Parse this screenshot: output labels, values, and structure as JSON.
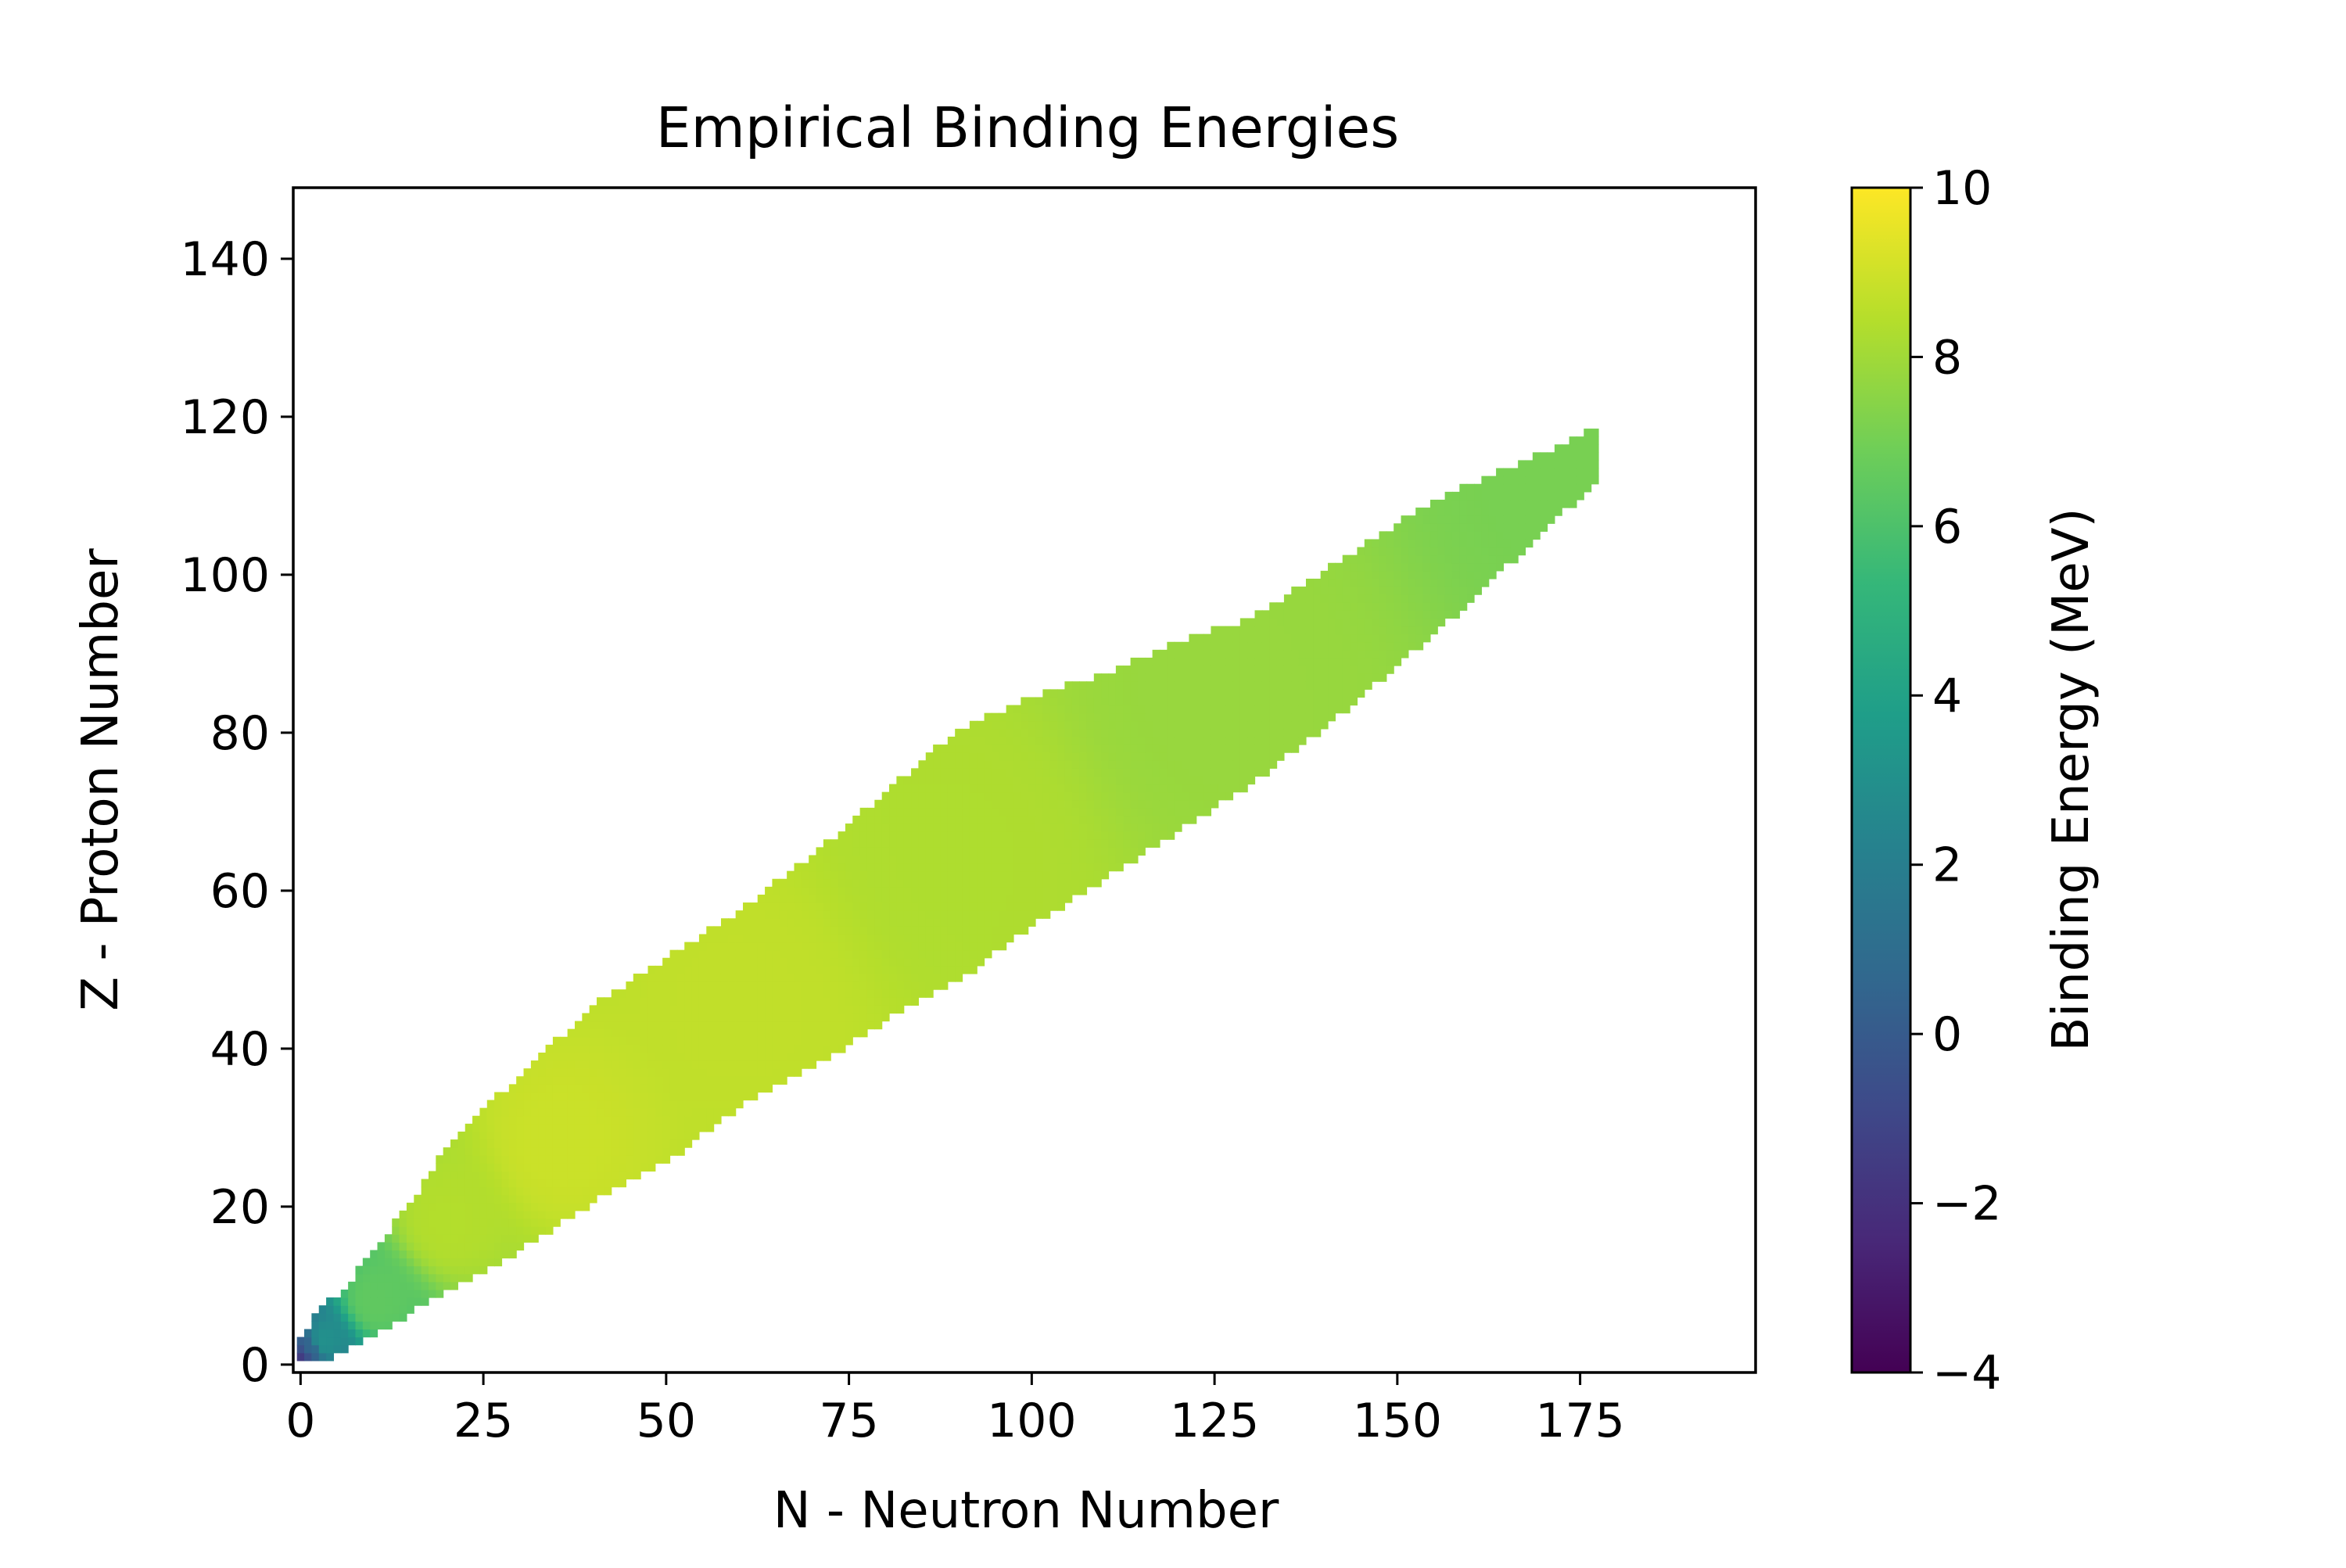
{
  "chart_data": {
    "type": "heatmap",
    "title": "Empirical Binding Energies",
    "xlabel": "N - Neutron Number",
    "ylabel": "Z - Proton Number",
    "xlim": [
      -1,
      199
    ],
    "ylim": [
      -1,
      149
    ],
    "x_ticks": [
      0,
      25,
      50,
      75,
      100,
      125,
      150,
      175
    ],
    "y_ticks": [
      0,
      20,
      40,
      60,
      80,
      100,
      120,
      140
    ],
    "grid": false,
    "colormap": "viridis",
    "colorbar": {
      "label": "Binding Energy (MeV)",
      "range": [
        -4,
        10
      ],
      "ticks": [
        -4,
        -2,
        0,
        2,
        4,
        6,
        8,
        10
      ],
      "tick_labels": [
        "−4",
        "−2",
        "0",
        "2",
        "4",
        "6",
        "8",
        "10"
      ]
    },
    "band_edges": [
      {
        "N": 0,
        "Z_lower": 1,
        "Z_upper": 3
      },
      {
        "N": 3,
        "Z_lower": 1,
        "Z_upper": 7
      },
      {
        "N": 6,
        "Z_lower": 2,
        "Z_upper": 9
      },
      {
        "N": 10,
        "Z_lower": 4,
        "Z_upper": 14
      },
      {
        "N": 15,
        "Z_lower": 7,
        "Z_upper": 20
      },
      {
        "N": 20,
        "Z_lower": 10,
        "Z_upper": 27
      },
      {
        "N": 25,
        "Z_lower": 12,
        "Z_upper": 32
      },
      {
        "N": 30,
        "Z_lower": 15,
        "Z_upper": 36
      },
      {
        "N": 40,
        "Z_lower": 21,
        "Z_upper": 45
      },
      {
        "N": 50,
        "Z_lower": 26,
        "Z_upper": 51
      },
      {
        "N": 60,
        "Z_lower": 33,
        "Z_upper": 57
      },
      {
        "N": 70,
        "Z_lower": 38,
        "Z_upper": 64
      },
      {
        "N": 80,
        "Z_lower": 44,
        "Z_upper": 72
      },
      {
        "N": 90,
        "Z_lower": 49,
        "Z_upper": 80
      },
      {
        "N": 100,
        "Z_lower": 56,
        "Z_upper": 84
      },
      {
        "N": 110,
        "Z_lower": 62,
        "Z_upper": 87
      },
      {
        "N": 120,
        "Z_lower": 68,
        "Z_upper": 91
      },
      {
        "N": 130,
        "Z_lower": 74,
        "Z_upper": 94
      },
      {
        "N": 140,
        "Z_lower": 81,
        "Z_upper": 100
      },
      {
        "N": 150,
        "Z_lower": 89,
        "Z_upper": 106
      },
      {
        "N": 160,
        "Z_lower": 97,
        "Z_upper": 111
      },
      {
        "N": 170,
        "Z_lower": 106,
        "Z_upper": 115
      },
      {
        "N": 177,
        "Z_lower": 112,
        "Z_upper": 118
      }
    ],
    "cell_values": [
      {
        "N": 0,
        "Z": 1,
        "energy": -1.5
      },
      {
        "N": 1,
        "Z": 2,
        "energy": 0.5
      },
      {
        "N": 3,
        "Z": 3,
        "energy": 3.0
      },
      {
        "N": 10,
        "Z": 8,
        "energy": 6.5
      },
      {
        "N": 20,
        "Z": 18,
        "energy": 8.4
      },
      {
        "N": 35,
        "Z": 28,
        "energy": 8.9
      },
      {
        "N": 60,
        "Z": 45,
        "energy": 8.7
      },
      {
        "N": 90,
        "Z": 65,
        "energy": 8.3
      },
      {
        "N": 125,
        "Z": 85,
        "energy": 7.8
      },
      {
        "N": 177,
        "Z": 115,
        "energy": 7.1
      }
    ]
  }
}
